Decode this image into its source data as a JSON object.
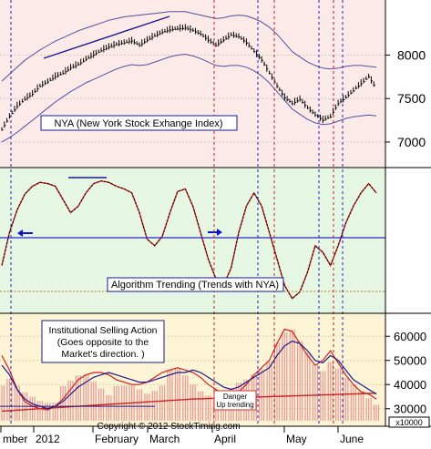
{
  "chart_data": [
    {
      "type": "line",
      "title": "NYA (New York Stock Exhange Index)",
      "y_ticks": [
        "7000",
        "7500",
        "8000"
      ],
      "ylim": [
        6800,
        8550
      ],
      "note": "daily high-low bars with upper and lower bands",
      "series": [
        {
          "values": [
            7150,
            7300,
            7420,
            7500,
            7560,
            7650,
            7700,
            7760,
            7800,
            7860,
            7900,
            7960,
            8010,
            8060,
            8100,
            8130,
            8150,
            8170,
            8120,
            8180,
            8230,
            8270,
            8300,
            8310,
            8320,
            8290,
            8250,
            8180,
            8120,
            8180,
            8240,
            8220,
            8150,
            8050,
            7950,
            7800,
            7650,
            7520,
            7450,
            7500,
            7400,
            7320,
            7260,
            7300,
            7450,
            7520,
            7600,
            7680,
            7760,
            7620
          ]
        },
        {
          "name": "upper band",
          "values": [
            7700,
            7780,
            7860,
            7940,
            8000,
            8060,
            8110,
            8160,
            8200,
            8240,
            8280,
            8310,
            8340,
            8370,
            8400,
            8420,
            8440,
            8450,
            8460,
            8470,
            8480,
            8490,
            8500,
            8500,
            8500,
            8480,
            8460,
            8440,
            8420,
            8430,
            8450,
            8460,
            8450,
            8420,
            8380,
            8320,
            8240,
            8140,
            8040,
            7980,
            7920,
            7880,
            7850,
            7840,
            7850,
            7870,
            7880,
            7880,
            7870,
            7860
          ]
        },
        {
          "name": "lower band",
          "values": [
            7000,
            7050,
            7110,
            7180,
            7250,
            7320,
            7390,
            7460,
            7520,
            7580,
            7630,
            7680,
            7720,
            7760,
            7800,
            7840,
            7870,
            7890,
            7880,
            7890,
            7920,
            7950,
            7980,
            8000,
            8010,
            7990,
            7960,
            7920,
            7880,
            7870,
            7880,
            7880,
            7860,
            7820,
            7760,
            7680,
            7580,
            7480,
            7380,
            7320,
            7260,
            7220,
            7200,
            7210,
            7240,
            7270,
            7290,
            7300,
            7310,
            7300
          ]
        }
      ]
    },
    {
      "type": "line",
      "title": "Algorithm Trending (Trends with NYA)",
      "ylim": [
        0,
        100
      ],
      "series": [
        {
          "values": [
            30,
            55,
            72,
            84,
            90,
            93,
            92,
            90,
            80,
            70,
            75,
            85,
            92,
            94,
            93,
            90,
            88,
            85,
            70,
            50,
            45,
            52,
            70,
            86,
            88,
            75,
            55,
            35,
            20,
            15,
            28,
            55,
            75,
            85,
            75,
            55,
            35,
            15,
            5,
            10,
            25,
            45,
            40,
            30,
            45,
            62,
            75,
            85,
            92,
            85
          ]
        }
      ]
    },
    {
      "type": "line",
      "title": "Institutional Selling Action\n(Goes opposite to the\nMarket's direction. )",
      "y_ticks": [
        "30000",
        "40000",
        "50000",
        "60000"
      ],
      "ylim": [
        25000,
        68000
      ],
      "note": "Danger\nUp trending",
      "unit": "x10000",
      "x_ticks": [
        "mber",
        "2012",
        "February",
        "March",
        "April",
        "May",
        "June"
      ],
      "series": [
        {
          "values": [
            48000,
            44000,
            38000,
            34000,
            32000,
            31000,
            30000,
            31000,
            33000,
            36000,
            39000,
            41000,
            43000,
            44000,
            45000,
            44000,
            43000,
            42000,
            41000,
            41000,
            42000,
            43000,
            44000,
            45000,
            45000,
            46000,
            45000,
            43000,
            41000,
            39000,
            38000,
            39000,
            41000,
            43000,
            45000,
            47000,
            52000,
            56000,
            58000,
            57000,
            54000,
            50000,
            49000,
            52000,
            50000,
            46000,
            42000,
            40000,
            38000,
            36000
          ]
        },
        {
          "values": [
            52000,
            46000,
            38000,
            33000,
            31000,
            30000,
            29500,
            31000,
            34000,
            38000,
            42000,
            44000,
            45000,
            45000,
            44000,
            42000,
            41000,
            40000,
            40000,
            41000,
            43000,
            45000,
            46000,
            47000,
            46000,
            45000,
            43000,
            40000,
            38000,
            36000,
            35000,
            37000,
            40000,
            44000,
            47000,
            50000,
            57000,
            63000,
            62000,
            57000,
            52000,
            48000,
            50000,
            54000,
            49000,
            44000,
            40000,
            37000,
            36000,
            34000
          ]
        },
        {
          "values": [
            29000,
            29200,
            29400,
            29600,
            29800,
            30000,
            30200,
            30400,
            30600,
            30800,
            31000,
            31200,
            31400,
            31600,
            31800,
            32000,
            32200,
            32400,
            32600,
            32800,
            33000,
            33200,
            33400,
            33600,
            33800,
            34000,
            34100,
            34200,
            34300,
            34400,
            34500,
            34600,
            34700,
            34800,
            34900,
            35000,
            35100,
            35200,
            35300,
            35400,
            35500,
            35600,
            35700,
            35800,
            35900,
            36000,
            36100,
            36200,
            36300,
            36400
          ]
        },
        {
          "values": [
            42000,
            40000,
            38000,
            36000,
            35000,
            34000,
            34000,
            35000,
            37000,
            40000,
            43000,
            44000,
            42000,
            40000,
            38000,
            37000,
            38000,
            39000,
            38000,
            37000,
            39000,
            42000,
            44000,
            45000,
            43000,
            40000,
            38000,
            37000,
            36000,
            35000,
            37000,
            40000,
            42000,
            45000,
            48000,
            52000,
            55000,
            60000,
            62000,
            58000,
            54000,
            50000,
            48000,
            47000,
            45000,
            42000,
            40000,
            38000,
            36000,
            34000
          ]
        }
      ]
    }
  ],
  "footer": {
    "copyright": "Copyright © 2012 StockTiming.com"
  }
}
